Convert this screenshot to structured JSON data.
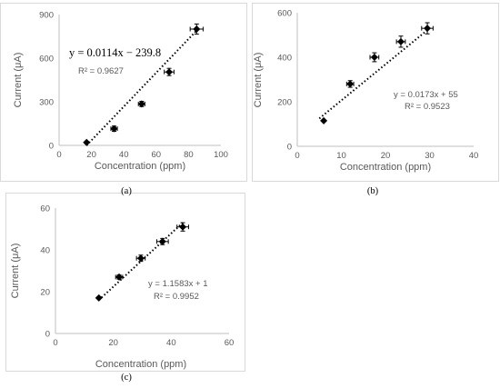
{
  "chart_data": [
    {
      "type": "scatter",
      "panel_label": "(a)",
      "xlabel": "Concentration (ppm)",
      "ylabel": "Current (μA)",
      "xlim": [
        0,
        100
      ],
      "ylim": [
        0,
        900
      ],
      "x_ticks": [
        0,
        20,
        40,
        60,
        80,
        100
      ],
      "y_ticks": [
        0,
        300,
        600,
        900
      ],
      "grid": false,
      "series": [
        {
          "x": [
            17,
            34,
            51,
            68,
            85
          ],
          "y": [
            20,
            115,
            285,
            505,
            800
          ],
          "xerr": [
            0,
            2,
            2,
            3,
            4
          ],
          "yerr": [
            0,
            18,
            18,
            25,
            35
          ]
        }
      ],
      "trendline": {
        "slope": 0.0114,
        "intercept": -239.8,
        "x_range": [
          17,
          85
        ],
        "y_range": [
          0,
          790
        ]
      },
      "equation": "y = 0.0114x − 239.8",
      "r2": "R² = 0.9627"
    },
    {
      "type": "scatter",
      "panel_label": "(b)",
      "xlabel": "Concentration (ppm)",
      "ylabel": "Current (μA)",
      "xlim": [
        0,
        40
      ],
      "ylim": [
        0,
        600
      ],
      "x_ticks": [
        0,
        10,
        20,
        30,
        40
      ],
      "y_ticks": [
        0,
        200,
        400,
        600
      ],
      "grid": false,
      "series": [
        {
          "x": [
            6,
            12,
            17.5,
            23.5,
            29.5
          ],
          "y": [
            115,
            280,
            400,
            470,
            530
          ],
          "xerr": [
            0,
            0.8,
            1,
            1,
            1.3
          ],
          "yerr": [
            0,
            15,
            20,
            25,
            25
          ]
        }
      ],
      "trendline": {
        "slope": 0.0173,
        "intercept": 55,
        "x_range": [
          5,
          30
        ],
        "y_range": [
          125,
          530
        ]
      },
      "equation": "y = 0.0173x + 55",
      "r2": "R² = 0.9523"
    },
    {
      "type": "scatter",
      "panel_label": "(c)",
      "xlabel": "Concentration (ppm)",
      "ylabel": "Current (μA)",
      "xlim": [
        0,
        60
      ],
      "ylim": [
        0,
        60
      ],
      "x_ticks": [
        0,
        20,
        40,
        60
      ],
      "y_ticks": [
        0,
        20,
        40,
        60
      ],
      "grid": false,
      "series": [
        {
          "x": [
            15,
            22,
            29.5,
            37,
            44
          ],
          "y": [
            17,
            27,
            36,
            44,
            51
          ],
          "xerr": [
            0,
            1.2,
            1.5,
            2,
            2
          ],
          "yerr": [
            0,
            1,
            1.5,
            1.5,
            2
          ]
        }
      ],
      "trendline": {
        "slope": 1.1583,
        "intercept": 1,
        "x_range": [
          15,
          44
        ],
        "y_range": [
          16,
          53
        ]
      },
      "equation": "y = 1.1583x + 1",
      "r2": "R² = 0.9952"
    }
  ]
}
